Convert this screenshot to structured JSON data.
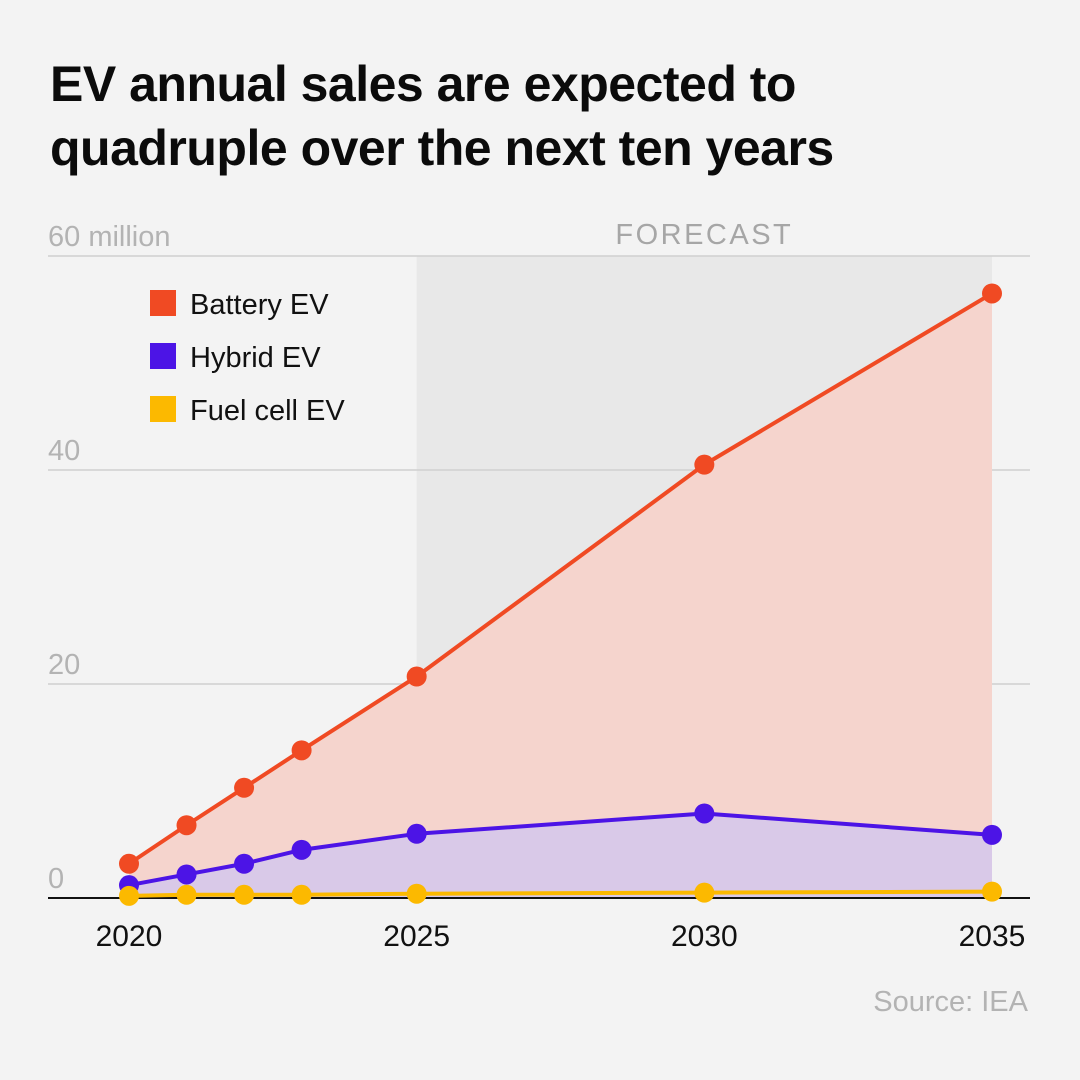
{
  "title": "EV annual sales are expected to quadruple over the next ten years",
  "source": "Source: IEA",
  "forecast_label": "FORECAST",
  "colors": {
    "background": "#f3f3f3",
    "forecast_shade": "#e8e8e8",
    "gridline": "#d0d0d0",
    "axis": "#111111"
  },
  "chart_data": {
    "type": "area",
    "x": [
      2020,
      2021,
      2022,
      2023,
      2025,
      2030,
      2035
    ],
    "x_ticks": [
      "2020",
      "2025",
      "2030",
      "2035"
    ],
    "y_ticks": [
      "0",
      "20",
      "40",
      "60 million"
    ],
    "ylim": [
      0,
      60
    ],
    "forecast_range": [
      2025,
      2035
    ],
    "grid": true,
    "legend_position": "top-left",
    "series": [
      {
        "name": "Battery EV",
        "color": "#f04a23",
        "fill": "#f5d4cd",
        "fill_opacity": 1,
        "values": [
          3.2,
          6.8,
          10.3,
          13.8,
          20.7,
          40.5,
          56.5
        ]
      },
      {
        "name": "Hybrid EV",
        "color": "#4c14e6",
        "fill": "#cfc5f0",
        "fill_opacity": 0.75,
        "values": [
          1.2,
          2.2,
          3.2,
          4.5,
          6.0,
          7.9,
          5.9
        ]
      },
      {
        "name": "Fuel cell EV",
        "color": "#fcb900",
        "fill": "#fcb900",
        "fill_opacity": 0,
        "values": [
          0.2,
          0.3,
          0.3,
          0.3,
          0.4,
          0.5,
          0.6
        ]
      }
    ]
  }
}
